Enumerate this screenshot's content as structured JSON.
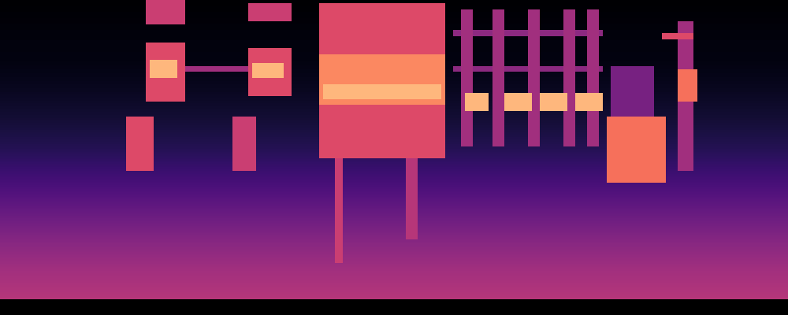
{
  "chart_data": {
    "type": "spectrogram",
    "xlim": [
      0,
      100
    ],
    "ylim": [
      0,
      100
    ],
    "zlim": [
      0,
      1
    ],
    "tick_labels": false,
    "grid": false,
    "noise_floor": [
      0.5,
      0.45,
      0.38,
      0.3,
      0.22,
      0.15,
      0.1,
      0.06,
      0.03,
      0.02,
      0.0
    ],
    "events": [
      {
        "t": [
          18.5,
          23.5
        ],
        "f": [
          92,
          100
        ],
        "level": 0.55
      },
      {
        "t": [
          18.5,
          23.5
        ],
        "f": [
          66,
          86
        ],
        "level": 0.6
      },
      {
        "t": [
          19,
          22.5
        ],
        "f": [
          74,
          80
        ],
        "level": 0.85
      },
      {
        "t": [
          16,
          19.5
        ],
        "f": [
          43,
          61
        ],
        "level": 0.6
      },
      {
        "t": [
          23.5,
          31.5
        ],
        "f": [
          76,
          78
        ],
        "level": 0.45
      },
      {
        "t": [
          31.5,
          37
        ],
        "f": [
          93,
          99
        ],
        "level": 0.55
      },
      {
        "t": [
          31.5,
          37
        ],
        "f": [
          68,
          84
        ],
        "level": 0.6
      },
      {
        "t": [
          32,
          36
        ],
        "f": [
          74,
          79
        ],
        "level": 0.85
      },
      {
        "t": [
          29.5,
          32.5
        ],
        "f": [
          43,
          61
        ],
        "level": 0.55
      },
      {
        "t": [
          40.5,
          56.5
        ],
        "f": [
          47,
          99
        ],
        "level": 0.6
      },
      {
        "t": [
          40.5,
          56.5
        ],
        "f": [
          65,
          82
        ],
        "level": 0.75
      },
      {
        "t": [
          41,
          56
        ],
        "f": [
          67,
          72
        ],
        "level": 0.85
      },
      {
        "t": [
          42.5,
          43.5
        ],
        "f": [
          12,
          47
        ],
        "level": 0.55
      },
      {
        "t": [
          51.5,
          53
        ],
        "f": [
          20,
          47
        ],
        "level": 0.5
      },
      {
        "t": [
          58.5,
          60
        ],
        "f": [
          51,
          97
        ],
        "level": 0.45
      },
      {
        "t": [
          62.5,
          64
        ],
        "f": [
          51,
          97
        ],
        "level": 0.45
      },
      {
        "t": [
          67,
          68.5
        ],
        "f": [
          51,
          97
        ],
        "level": 0.45
      },
      {
        "t": [
          71.5,
          73
        ],
        "f": [
          51,
          97
        ],
        "level": 0.45
      },
      {
        "t": [
          74.5,
          76
        ],
        "f": [
          51,
          97
        ],
        "level": 0.45
      },
      {
        "t": [
          57.5,
          76.5
        ],
        "f": [
          88,
          90
        ],
        "level": 0.4
      },
      {
        "t": [
          57.5,
          76.5
        ],
        "f": [
          76,
          78
        ],
        "level": 0.4
      },
      {
        "t": [
          59,
          62
        ],
        "f": [
          63,
          69
        ],
        "level": 0.85
      },
      {
        "t": [
          64,
          67.5
        ],
        "f": [
          63,
          69
        ],
        "level": 0.85
      },
      {
        "t": [
          68.5,
          72
        ],
        "f": [
          63,
          69
        ],
        "level": 0.85
      },
      {
        "t": [
          73,
          76.5
        ],
        "f": [
          63,
          69
        ],
        "level": 0.85
      },
      {
        "t": [
          77,
          84.5
        ],
        "f": [
          39,
          61
        ],
        "level": 0.7
      },
      {
        "t": [
          77.5,
          83
        ],
        "f": [
          61,
          78
        ],
        "level": 0.35
      },
      {
        "t": [
          86,
          88
        ],
        "f": [
          43,
          93
        ],
        "level": 0.45
      },
      {
        "t": [
          86,
          88.5
        ],
        "f": [
          66,
          77
        ],
        "level": 0.7
      },
      {
        "t": [
          84,
          88
        ],
        "f": [
          87,
          89
        ],
        "level": 0.6
      }
    ]
  }
}
